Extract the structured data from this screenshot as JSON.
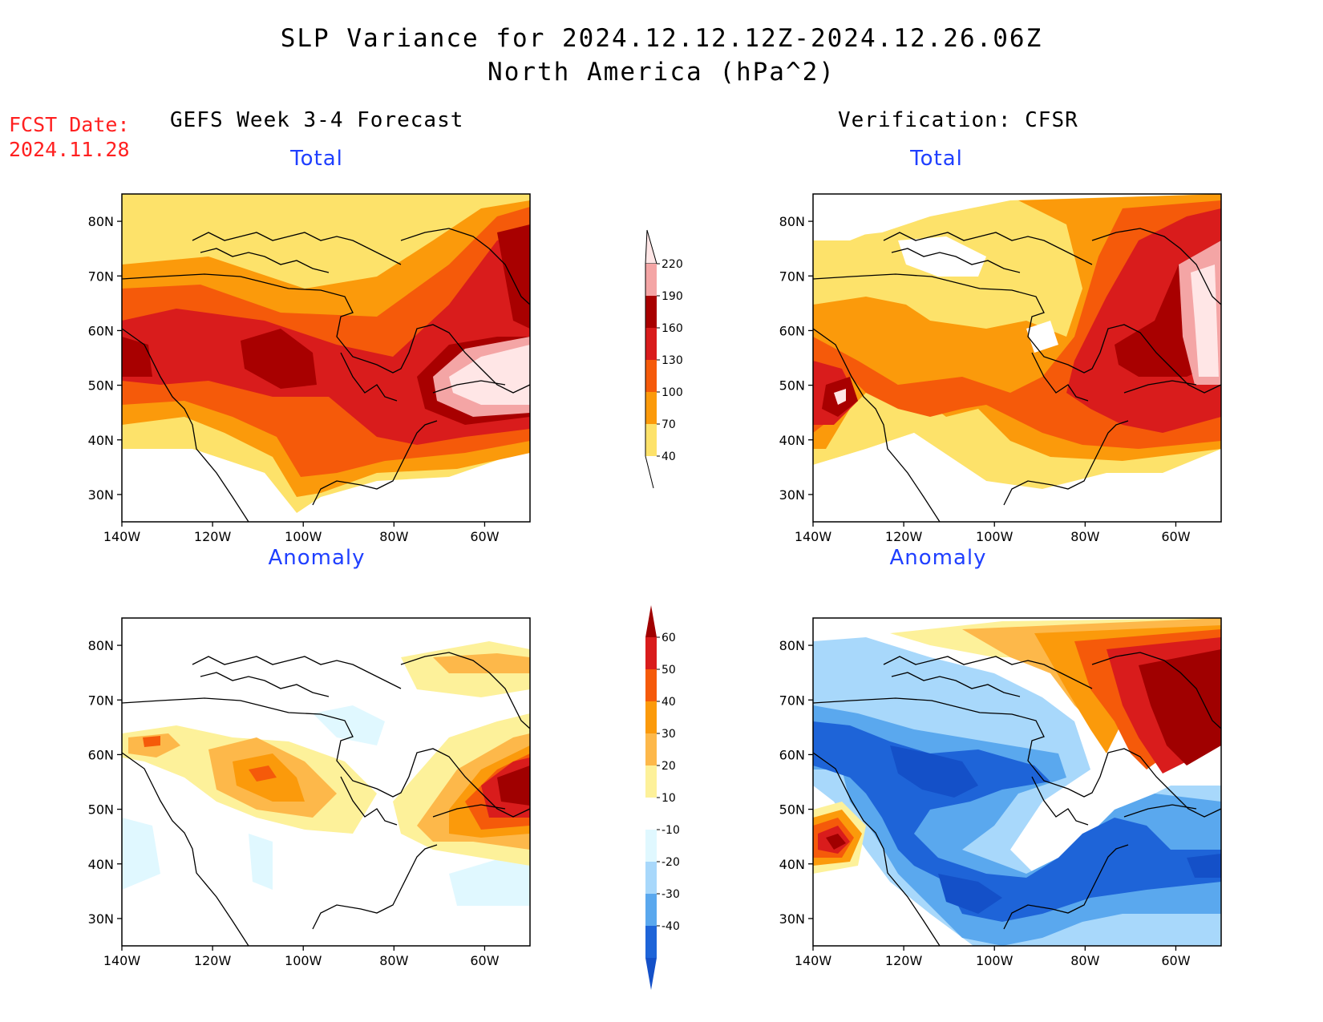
{
  "header": {
    "title": "SLP Variance for 2024.12.12.12Z-2024.12.26.06Z",
    "subtitle": "North America (hPa^2)"
  },
  "fcst": {
    "label": "FCST Date:",
    "date": "2024.11.28"
  },
  "columns": {
    "left": "GEFS Week 3-4 Forecast",
    "right": "Verification: CFSR"
  },
  "panels": {
    "total": "Total",
    "anomaly": "Anomaly"
  },
  "axes": {
    "lat_labels": [
      "80N",
      "70N",
      "60N",
      "50N",
      "40N",
      "30N"
    ],
    "lon_labels": [
      "140W",
      "120W",
      "100W",
      "80W",
      "60W"
    ]
  },
  "colorbars": {
    "total": {
      "labels": [
        "220",
        "190",
        "160",
        "130",
        "100",
        "70",
        "40"
      ],
      "colors": [
        "#ffe6e6",
        "#f4a5a5",
        "#a80000",
        "#d91c1c",
        "#f55a0a",
        "#fb9a0b",
        "#fde26a"
      ]
    },
    "anomaly": {
      "labels": [
        "60",
        "50",
        "40",
        "30",
        "20",
        "10",
        "-10",
        "-20",
        "-30",
        "-40"
      ],
      "colors": [
        "#a00000",
        "#d91c1c",
        "#f55a0a",
        "#fb9a0b",
        "#fdb84a",
        "#fdf19a",
        "#ffffff",
        "#e0f8ff",
        "#a8d8fb",
        "#5aa8ee",
        "#1e64d8",
        "#1450c8"
      ]
    }
  },
  "colors": {
    "title_blue": "#1f3fff",
    "fcst_red": "#ff2020"
  }
}
